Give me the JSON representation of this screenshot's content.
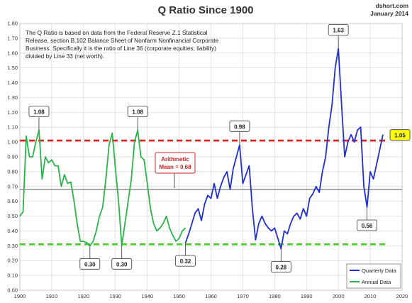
{
  "header": {
    "title": "Q Ratio Since 1900",
    "source": "dshort.com",
    "date": "January 2014"
  },
  "note_lines": [
    "The Q Ratio is based on data from the Federal Reserve Z.1 Statistical",
    "Release, section B.102 Balance Sheet of Nonfarm Nonfinancial Corporate",
    "Business. Specifically it is the ratio of Line 36 (corporate equities; liability)",
    "divided by Line 33 (net worth)."
  ],
  "mean_label": [
    "Arithmetic",
    "Mean = 0.68"
  ],
  "colors": {
    "annual": "#2bb34a",
    "quarterly": "#1f2fd0",
    "upper_band": "#dd2222",
    "lower_band": "#44cc22",
    "mean_line": "#555555",
    "grid": "#d8d8d8",
    "current_badge": "#ffff00"
  },
  "chart_data": {
    "type": "line",
    "title": "Q Ratio Since 1900",
    "xlim": [
      1900,
      2020
    ],
    "ylim": [
      0.0,
      1.8
    ],
    "x_ticks": [
      "1900",
      "1910",
      "1920",
      "1930",
      "1940",
      "1950",
      "1960",
      "1970",
      "1980",
      "1990",
      "2000",
      "2010",
      "2020"
    ],
    "y_ticks": [
      "0.00",
      "0.10",
      "0.20",
      "0.30",
      "0.40",
      "0.50",
      "0.60",
      "0.70",
      "0.80",
      "0.90",
      "1.00",
      "1.10",
      "1.20",
      "1.30",
      "1.40",
      "1.50",
      "1.60",
      "1.70",
      "1.80"
    ],
    "grid": true,
    "legend_position": "bottom-right",
    "mean": 0.68,
    "upper_band": 1.01,
    "lower_band": 0.31,
    "series": [
      {
        "name": "Annual Data",
        "x": [
          1900,
          1901,
          1902,
          1903,
          1904,
          1905,
          1906,
          1907,
          1908,
          1909,
          1910,
          1911,
          1912,
          1913,
          1914,
          1915,
          1916,
          1917,
          1918,
          1919,
          1920,
          1921,
          1922,
          1923,
          1924,
          1925,
          1926,
          1927,
          1928,
          1929,
          1930,
          1931,
          1932,
          1933,
          1934,
          1935,
          1936,
          1937,
          1938,
          1939,
          1940,
          1941,
          1942,
          1943,
          1944,
          1945,
          1946,
          1947,
          1948,
          1949,
          1950,
          1951,
          1952
        ],
        "values": [
          0.5,
          0.53,
          1.04,
          0.9,
          0.9,
          1.0,
          1.08,
          0.75,
          0.9,
          0.86,
          0.88,
          0.84,
          0.84,
          0.7,
          0.78,
          0.72,
          0.73,
          0.6,
          0.45,
          0.33,
          0.33,
          0.32,
          0.3,
          0.33,
          0.4,
          0.5,
          0.56,
          0.75,
          0.98,
          1.06,
          0.82,
          0.6,
          0.3,
          0.45,
          0.6,
          0.75,
          1.0,
          1.08,
          0.9,
          0.88,
          0.72,
          0.55,
          0.45,
          0.4,
          0.42,
          0.45,
          0.5,
          0.42,
          0.37,
          0.33,
          0.35,
          0.4,
          0.42
        ]
      },
      {
        "name": "Quarterly Data",
        "x": [
          1952,
          1953,
          1954,
          1955,
          1956,
          1957,
          1958,
          1959,
          1960,
          1961,
          1962,
          1963,
          1964,
          1965,
          1966,
          1967,
          1968,
          1969,
          1970,
          1971,
          1972,
          1973,
          1974,
          1975,
          1976,
          1977,
          1978,
          1979,
          1980,
          1981,
          1982,
          1983,
          1984,
          1985,
          1986,
          1987,
          1988,
          1989,
          1990,
          1991,
          1992,
          1993,
          1994,
          1995,
          1996,
          1997,
          1998,
          1999,
          2000,
          2001,
          2002,
          2003,
          2004,
          2005,
          2006,
          2007,
          2008,
          2009,
          2010,
          2011,
          2012,
          2013,
          2014
        ],
        "values": [
          0.32,
          0.38,
          0.45,
          0.52,
          0.55,
          0.47,
          0.58,
          0.64,
          0.62,
          0.72,
          0.62,
          0.7,
          0.76,
          0.8,
          0.68,
          0.82,
          0.9,
          0.98,
          0.72,
          0.78,
          0.84,
          0.55,
          0.34,
          0.45,
          0.5,
          0.45,
          0.42,
          0.4,
          0.42,
          0.35,
          0.28,
          0.4,
          0.38,
          0.45,
          0.5,
          0.52,
          0.48,
          0.55,
          0.5,
          0.62,
          0.65,
          0.7,
          0.66,
          0.8,
          0.9,
          1.1,
          1.25,
          1.5,
          1.63,
          1.25,
          0.9,
          1.0,
          1.05,
          1.0,
          1.08,
          1.1,
          0.7,
          0.56,
          0.8,
          0.75,
          0.85,
          0.95,
          1.05
        ]
      }
    ],
    "callouts": [
      {
        "text": "1.08",
        "x": 1906,
        "y": 1.08
      },
      {
        "text": "1.08",
        "x": 1937,
        "y": 1.08
      },
      {
        "text": "0.30",
        "x": 1922,
        "y": 0.3
      },
      {
        "text": "0.30",
        "x": 1932,
        "y": 0.3
      },
      {
        "text": "0.32",
        "x": 1952,
        "y": 0.32
      },
      {
        "text": "0.98",
        "x": 1969,
        "y": 0.98
      },
      {
        "text": "0.28",
        "x": 1982,
        "y": 0.28
      },
      {
        "text": "1.63",
        "x": 2000,
        "y": 1.63
      },
      {
        "text": "0.56",
        "x": 2009,
        "y": 0.56
      },
      {
        "text": "1.05",
        "x": 2014,
        "y": 1.05
      }
    ]
  }
}
